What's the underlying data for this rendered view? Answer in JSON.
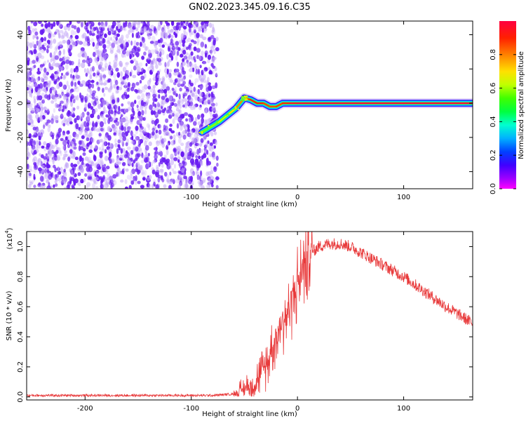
{
  "title": "GN02.2023.345.09.16.C35",
  "colors": {
    "snr_line": "#e8393a",
    "heatmap_dot": "#6a1cf2",
    "heatmap_dot_light": "#c3a6f7"
  },
  "colorbar": {
    "label": "Normalized spectral amplitude",
    "ticks": [
      "0.0",
      "0.2",
      "0.4",
      "0.6",
      "0.8"
    ],
    "range": [
      0,
      1
    ],
    "colormap": "gist_rainbow"
  },
  "chart_data": [
    {
      "type": "heatmap",
      "xlabel": "Height of straight line (km)",
      "ylabel": "Frequency (Hz)",
      "xlim": [
        -255,
        165
      ],
      "ylim": [
        -50,
        48
      ],
      "xticks": [
        -200,
        -100,
        0,
        100
      ],
      "xtick_labels": [
        "-200",
        "-100",
        "0",
        "100"
      ],
      "yticks": [
        -40,
        -20,
        0,
        20,
        40
      ],
      "ytick_labels": [
        "-40",
        "-20",
        "0",
        "20",
        "40"
      ],
      "grid": false,
      "noise_region_x": [
        -255,
        -78
      ],
      "signal_track": {
        "x": [
          -90,
          -82,
          -74,
          -66,
          -58,
          -50,
          -44,
          -38,
          -32,
          -26,
          -20,
          -14,
          -8,
          0,
          20,
          60,
          100,
          165
        ],
        "y": [
          -17,
          -14,
          -11,
          -7,
          -3,
          3,
          2,
          0,
          0,
          -2,
          -2,
          0,
          0,
          0,
          0,
          0,
          0,
          0
        ],
        "amplitude": [
          0.55,
          0.55,
          0.6,
          0.65,
          0.75,
          0.85,
          0.9,
          0.95,
          0.9,
          0.85,
          0.85,
          0.9,
          0.95,
          1.0,
          1.0,
          1.0,
          1.0,
          1.0
        ]
      }
    },
    {
      "type": "line",
      "xlabel": "Height of straight line (km)",
      "ylabel": "SNR (10 * v/v)",
      "scale_note": "(x10",
      "scale_exp": "4",
      "xlim": [
        -255,
        165
      ],
      "ylim": [
        -0.02,
        1.1
      ],
      "xticks": [
        -200,
        -100,
        0,
        100
      ],
      "xtick_labels": [
        "-200",
        "-100",
        "0",
        "100"
      ],
      "yticks": [
        0.0,
        0.2,
        0.4,
        0.6,
        0.8,
        1.0
      ],
      "ytick_labels": [
        "0.0",
        "0.2",
        "0.4",
        "0.6",
        "0.8",
        "1.0"
      ],
      "grid": false,
      "series": [
        {
          "x": [
            -255,
            -200,
            -150,
            -100,
            -80,
            -60,
            -50,
            -40,
            -30,
            -25,
            -20,
            -15,
            -10,
            -5,
            0,
            5,
            10,
            15,
            20,
            30,
            40,
            50,
            60,
            80,
            100,
            120,
            140,
            165
          ],
          "y": [
            0.01,
            0.01,
            0.01,
            0.01,
            0.01,
            0.02,
            0.05,
            0.1,
            0.2,
            0.3,
            0.4,
            0.5,
            0.55,
            0.65,
            0.75,
            0.85,
            0.92,
            0.97,
            1.0,
            1.02,
            1.02,
            1.0,
            0.96,
            0.88,
            0.8,
            0.7,
            0.6,
            0.49
          ]
        }
      ]
    }
  ]
}
